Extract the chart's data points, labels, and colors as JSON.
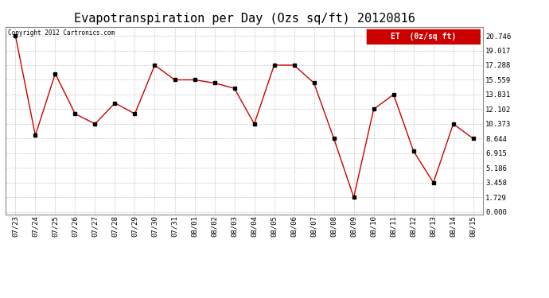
{
  "title": "Evapotranspiration per Day (Ozs sq/ft) 20120816",
  "copyright_text": "Copyright 2012 Cartronics.com",
  "legend_label": "ET  (0z/sq ft)",
  "legend_bg": "#cc0000",
  "legend_fg": "#ffffff",
  "x_labels": [
    "07/23",
    "07/24",
    "07/25",
    "07/26",
    "07/27",
    "07/28",
    "07/29",
    "07/30",
    "07/31",
    "08/01",
    "08/02",
    "08/03",
    "08/04",
    "08/05",
    "08/06",
    "08/07",
    "08/08",
    "08/09",
    "08/10",
    "08/11",
    "08/12",
    "08/13",
    "08/14",
    "08/15"
  ],
  "y_values": [
    20.746,
    9.017,
    16.288,
    11.559,
    10.373,
    12.831,
    11.559,
    17.288,
    15.559,
    15.559,
    15.186,
    14.559,
    10.373,
    17.288,
    17.288,
    15.186,
    8.644,
    1.729,
    12.102,
    13.831,
    7.186,
    3.458,
    10.373,
    8.644
  ],
  "y_ticks": [
    0.0,
    1.729,
    3.458,
    5.186,
    6.915,
    8.644,
    10.373,
    12.102,
    13.831,
    15.559,
    17.288,
    19.017,
    20.746
  ],
  "line_color": "#cc0000",
  "marker_color": "#000000",
  "bg_color": "#ffffff",
  "plot_bg_color": "#ffffff",
  "grid_color": "#c8c8c8",
  "title_fontsize": 11,
  "label_fontsize": 6.5,
  "ytick_fontsize": 6.5,
  "ylim": [
    -0.3,
    21.8
  ],
  "xlim": [
    -0.5,
    23.5
  ]
}
